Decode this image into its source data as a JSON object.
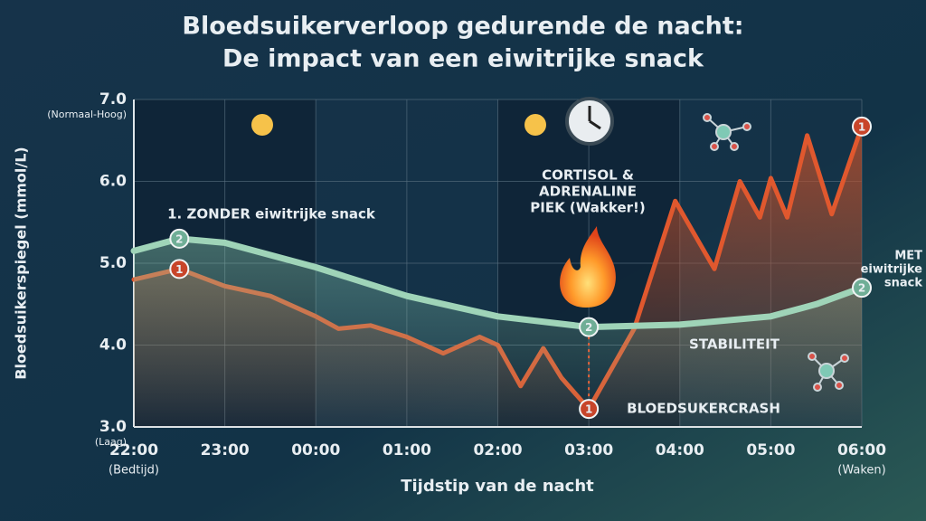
{
  "chart_data": {
    "type": "line",
    "title": [
      "Bloedsuikerverloop gedurende de nacht:",
      "De impact van een eiwitrijke snack"
    ],
    "x_label": "Tijdstip van de nacht",
    "y_label": "Bloedsuikerspiegel (mmol/L)",
    "xlim": [
      22,
      30
    ],
    "xticks": [
      {
        "value": 22,
        "label": "22:00"
      },
      {
        "value": 23,
        "label": "23:00"
      },
      {
        "value": 24,
        "label": "00:00"
      },
      {
        "value": 25,
        "label": "01:00"
      },
      {
        "value": 26,
        "label": "02:00"
      },
      {
        "value": 27,
        "label": "03:00"
      },
      {
        "value": 28,
        "label": "04:00"
      },
      {
        "value": 29,
        "label": "05:00"
      },
      {
        "value": 30,
        "label": "06:00"
      }
    ],
    "x_notes": [
      {
        "value": 22,
        "label": "(Bedtijd)"
      },
      {
        "value": 30,
        "label": "(Waken)"
      }
    ],
    "ylim": [
      3,
      7
    ],
    "yticks": [
      {
        "value": 3,
        "label": "3.0"
      },
      {
        "value": 4,
        "label": "4.0"
      },
      {
        "value": 5,
        "label": "5.0"
      },
      {
        "value": 6,
        "label": "6.0"
      },
      {
        "value": 7,
        "label": "7.0"
      }
    ],
    "y_notes": [
      {
        "value": 3,
        "label": "(Laag)"
      },
      {
        "value": 7,
        "label": "(Normaal-Hoog)"
      }
    ],
    "grid": true,
    "shaded_ranges": [
      [
        22,
        24
      ],
      [
        26,
        28
      ]
    ],
    "series": [
      {
        "name": "1. ZONDER eiwitrijke snack",
        "color": "#e0582e",
        "marker_label": "1",
        "marker_x": [
          22.5,
          27,
          30
        ],
        "x": [
          22,
          22.5,
          23,
          23.5,
          24,
          24.25,
          24.6,
          25,
          25.4,
          25.8,
          26,
          26.25,
          26.5,
          26.7,
          27,
          27.5,
          27.95,
          28.38,
          28.66,
          28.88,
          29,
          29.18,
          29.4,
          29.67,
          30
        ],
        "values": [
          4.8,
          4.93,
          4.72,
          4.6,
          4.35,
          4.2,
          4.24,
          4.1,
          3.9,
          4.1,
          4.0,
          3.5,
          3.96,
          3.6,
          3.22,
          4.2,
          5.76,
          4.93,
          6.0,
          5.56,
          6.04,
          5.56,
          6.56,
          5.6,
          6.67
        ]
      },
      {
        "name": "MET eiwitrijke snack",
        "color": "#9fd4b8",
        "marker_label": "2",
        "marker_x": [
          22.5,
          27,
          30
        ],
        "x": [
          22,
          22.5,
          23,
          24,
          25,
          26,
          27,
          28,
          29,
          29.5,
          30
        ],
        "values": [
          5.15,
          5.3,
          5.25,
          4.95,
          4.6,
          4.35,
          4.22,
          4.25,
          4.35,
          4.5,
          4.7
        ]
      }
    ],
    "annotations": {
      "peak": [
        "CORTISOL &",
        "ADRENALINE",
        "PIEK (Wakker!)"
      ],
      "stability": "STABILITEIT",
      "crash": "BLOEDSUKERCRASH"
    }
  }
}
